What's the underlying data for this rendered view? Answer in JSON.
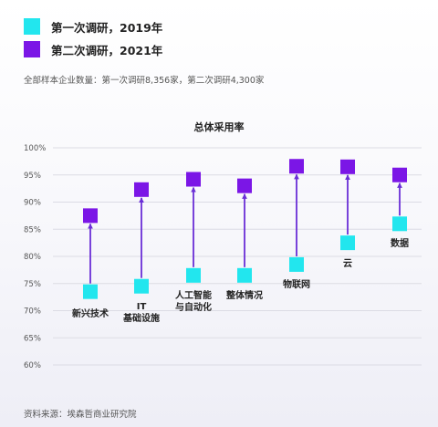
{
  "legend": [
    {
      "label": "第一次调研，2019年",
      "color": "#22e6ee"
    },
    {
      "label": "第二次调研，2021年",
      "color": "#7b16e6"
    }
  ],
  "sample_note": "全部样本企业数量：第一次调研8,356家，第二次调研4,300家",
  "source_note": "资料来源：埃森哲商业研究院",
  "chart_data": {
    "type": "scatter",
    "title": "总体采用率",
    "y_ticks": [
      "100%",
      "95%",
      "90%",
      "85%",
      "80%",
      "75%",
      "70%",
      "65%",
      "60%"
    ],
    "ylim": [
      60,
      100
    ],
    "categories": [
      [
        "新兴技术"
      ],
      [
        "IT",
        "基础设施"
      ],
      [
        "人工智能",
        "与自动化"
      ],
      [
        "整体情况"
      ],
      [
        "物联网"
      ],
      [
        "云"
      ],
      [
        "数据"
      ]
    ],
    "series": [
      {
        "name": "第一次调研，2019年",
        "values": [
          73.5,
          74.5,
          76.5,
          76.5,
          78.5,
          82.5,
          86
        ],
        "color": "#22e6ee"
      },
      {
        "name": "第二次调研，2021年",
        "values": [
          87.5,
          92.3,
          94.2,
          93,
          96.6,
          96.5,
          95
        ],
        "color": "#7b16e6"
      }
    ],
    "arrow_color": "#6a2ed6",
    "grid": true
  }
}
